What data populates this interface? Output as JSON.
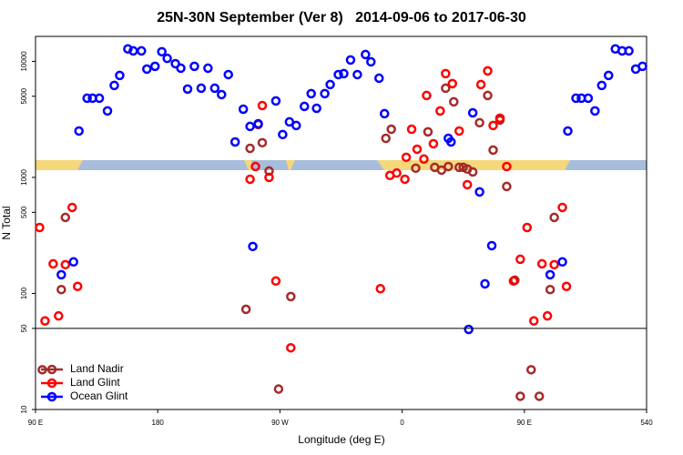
{
  "chart_data": {
    "type": "scatter",
    "title": "25N-30N September (Ver 8)   2014-09-06 to 2017-06-30",
    "x_label": "Longitude (deg E)",
    "y_label": "N Total",
    "log_y": true,
    "xlim": [
      90,
      540
    ],
    "ylim": [
      10,
      16400
    ],
    "xticks": [
      {
        "value": 90,
        "label": "90 E"
      },
      180,
      {
        "value": 270,
        "label": "90 W"
      },
      {
        "value": 360,
        "label": "0"
      },
      {
        "value": 450,
        "label": "90 E"
      },
      540
    ],
    "yticks": [
      10,
      50,
      100,
      500,
      1000,
      5000,
      10000
    ],
    "reference_line": 50,
    "legend": "lower left",
    "series": [
      {
        "name": "Land Nadir",
        "color": "#a52a2a",
        "x": [
          95,
          109,
          112,
          245,
          248,
          254,
          257,
          262,
          269,
          278,
          348,
          352,
          370,
          379,
          384,
          389,
          392,
          394,
          398,
          402,
          405,
          408,
          412,
          417,
          423,
          427,
          432,
          437,
          443,
          447,
          455,
          461,
          469,
          472
        ],
        "values": [
          22,
          108,
          452,
          73,
          1780,
          2850,
          1990,
          1135,
          15,
          94,
          2170,
          2600,
          1200,
          2470,
          1220,
          1155,
          5870,
          1240,
          4480,
          1220,
          1220,
          1180,
          1115,
          2960,
          5080,
          1720,
          3120,
          835,
          130,
          13,
          22,
          13,
          108,
          452
        ]
      },
      {
        "name": "Land Glint",
        "color": "#ff0000",
        "x": [
          93,
          97,
          103,
          107,
          112,
          117,
          121,
          248,
          252,
          257,
          262,
          267,
          278,
          344,
          351,
          356,
          362,
          363,
          367,
          371,
          376,
          378,
          383,
          388,
          392,
          397,
          402,
          408,
          418,
          423,
          427,
          432,
          437,
          442,
          447,
          452,
          457,
          463,
          467,
          472,
          478,
          481
        ],
        "values": [
          370,
          58,
          180,
          64,
          177,
          551,
          115,
          964,
          1240,
          4160,
          1000,
          128,
          34,
          110,
          1040,
          1090,
          964,
          1490,
          2600,
          1750,
          1440,
          5080,
          1950,
          3740,
          7840,
          6430,
          2510,
          865,
          6310,
          8280,
          2800,
          3240,
          1240,
          128,
          197,
          370,
          58,
          180,
          64,
          177,
          551,
          115
        ]
      },
      {
        "name": "Ocean Glint",
        "color": "#0000ff",
        "x": [
          109,
          118,
          122,
          128,
          132,
          137,
          143,
          148,
          152,
          158,
          162,
          168,
          172,
          178,
          183,
          187,
          193,
          197,
          202,
          207,
          212,
          217,
          222,
          227,
          232,
          237,
          243,
          248,
          250,
          254,
          267,
          272,
          277,
          282,
          288,
          293,
          297,
          303,
          307,
          313,
          317,
          322,
          327,
          333,
          337,
          343,
          347,
          394,
          396,
          409,
          412,
          417,
          421,
          426,
          469,
          478,
          482,
          488,
          492,
          497,
          502,
          507,
          512,
          517,
          522,
          527,
          532,
          537
        ],
        "values": [
          145,
          187,
          2510,
          4810,
          4810,
          4810,
          3740,
          6200,
          7560,
          12800,
          12300,
          12300,
          8580,
          9060,
          12100,
          10600,
          9550,
          8730,
          5770,
          9060,
          5870,
          8730,
          5870,
          5170,
          7690,
          2020,
          3870,
          2750,
          254,
          2900,
          4560,
          2340,
          3010,
          2800,
          4090,
          5270,
          3940,
          5270,
          6310,
          7690,
          7840,
          10280,
          7690,
          11450,
          9910,
          7160,
          3540,
          2170,
          2020,
          49,
          3600,
          750,
          121,
          258,
          145,
          187,
          2510,
          4810,
          4810,
          4810,
          3740,
          6200,
          7560,
          12800,
          12300,
          12300,
          8580,
          9060
        ]
      }
    ]
  }
}
